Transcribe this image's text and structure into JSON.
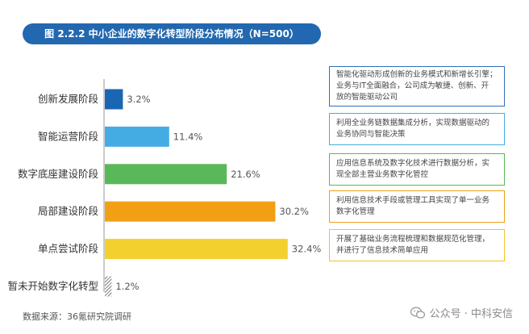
{
  "title": "图 2.2.2 中小企业的数字化转型阶段分布情况（N=500）",
  "chart_data": {
    "type": "bar",
    "orientation": "horizontal",
    "categories": [
      "创新发展阶段",
      "智能运营阶段",
      "数字底座建设阶段",
      "局部建设阶段",
      "单点尝试阶段",
      "暂未开始数字化转型"
    ],
    "values": [
      3.2,
      11.4,
      21.6,
      30.2,
      32.4,
      1.2
    ],
    "value_labels": [
      "3.2%",
      "11.4%",
      "21.6%",
      "30.2%",
      "32.4%",
      "1.2%"
    ],
    "colors": [
      "#1a66b3",
      "#45ace3",
      "#58b85a",
      "#f1a016",
      "#f4d02e",
      "#555555"
    ],
    "unit": "%",
    "xlim": [
      0,
      35
    ],
    "grid": false,
    "legend": "none"
  },
  "descriptions": [
    {
      "text": "智能化驱动形成创新的业务模式和新增长引擎；\n业务与IT全面融合，公司成为敏捷、创新、开\n放的智能驱动公司",
      "color": "#2d6fb8"
    },
    {
      "text": "利用全业务链数据集成分析，实现数据驱动的\n业务协同与智能决策",
      "color": "#45ace3"
    },
    {
      "text": "应用信息系统及数字化技术进行数据分析，实\n现全部主营业务数字化管控",
      "color": "#58b85a"
    },
    {
      "text": "利用信息技术手段或管理工具实现了单一业务\n数字化管理",
      "color": "#f1a016"
    },
    {
      "text": "开展了基础业务流程梳理和数据规范化管理，\n并进行了信息技术简单应用",
      "color": "#f4c22e"
    }
  ],
  "source": "数据来源：36氪研究院调研",
  "watermark": "公众号 · 中科安信"
}
